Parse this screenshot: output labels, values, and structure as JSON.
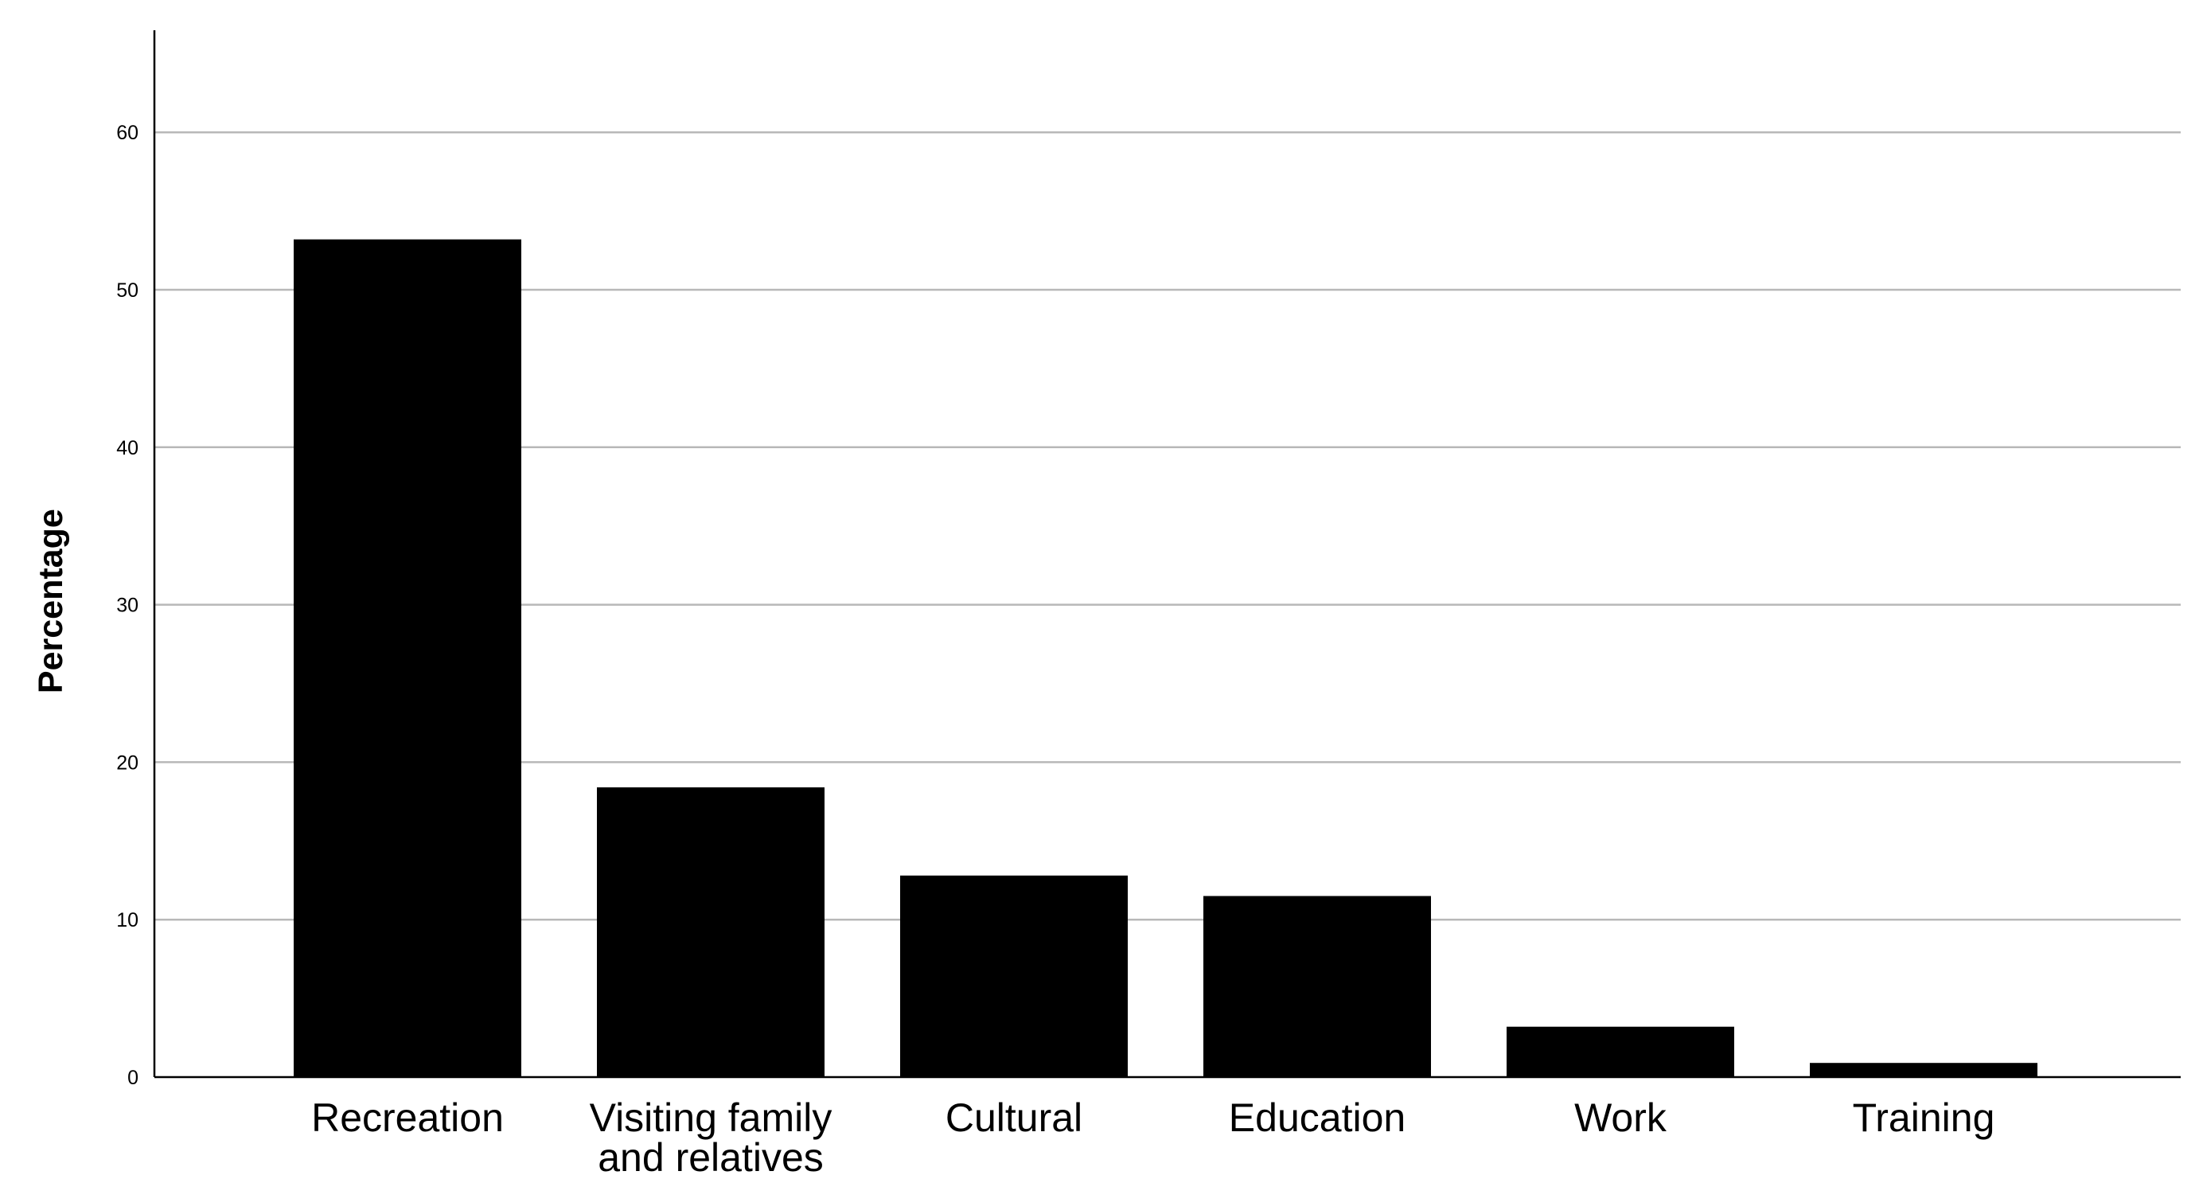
{
  "chart_data": {
    "type": "bar",
    "categories": [
      "Recreation",
      "Visiting family and relatives",
      "Cultural",
      "Education",
      "Work",
      "Training"
    ],
    "category_label_lines": [
      [
        "Recreation"
      ],
      [
        "Visiting family",
        "and relatives"
      ],
      [
        "Cultural"
      ],
      [
        "Education"
      ],
      [
        "Work"
      ],
      [
        "Training"
      ]
    ],
    "values": [
      53.2,
      18.4,
      12.8,
      11.5,
      3.2,
      0.9
    ],
    "xlabel": "",
    "ylabel": "Percentage",
    "ylim": [
      0,
      65
    ],
    "yticks": [
      0,
      10,
      20,
      30,
      40,
      50,
      60
    ],
    "grid": true,
    "bar_color": "#000000",
    "grid_color": "#b8b8b8"
  }
}
